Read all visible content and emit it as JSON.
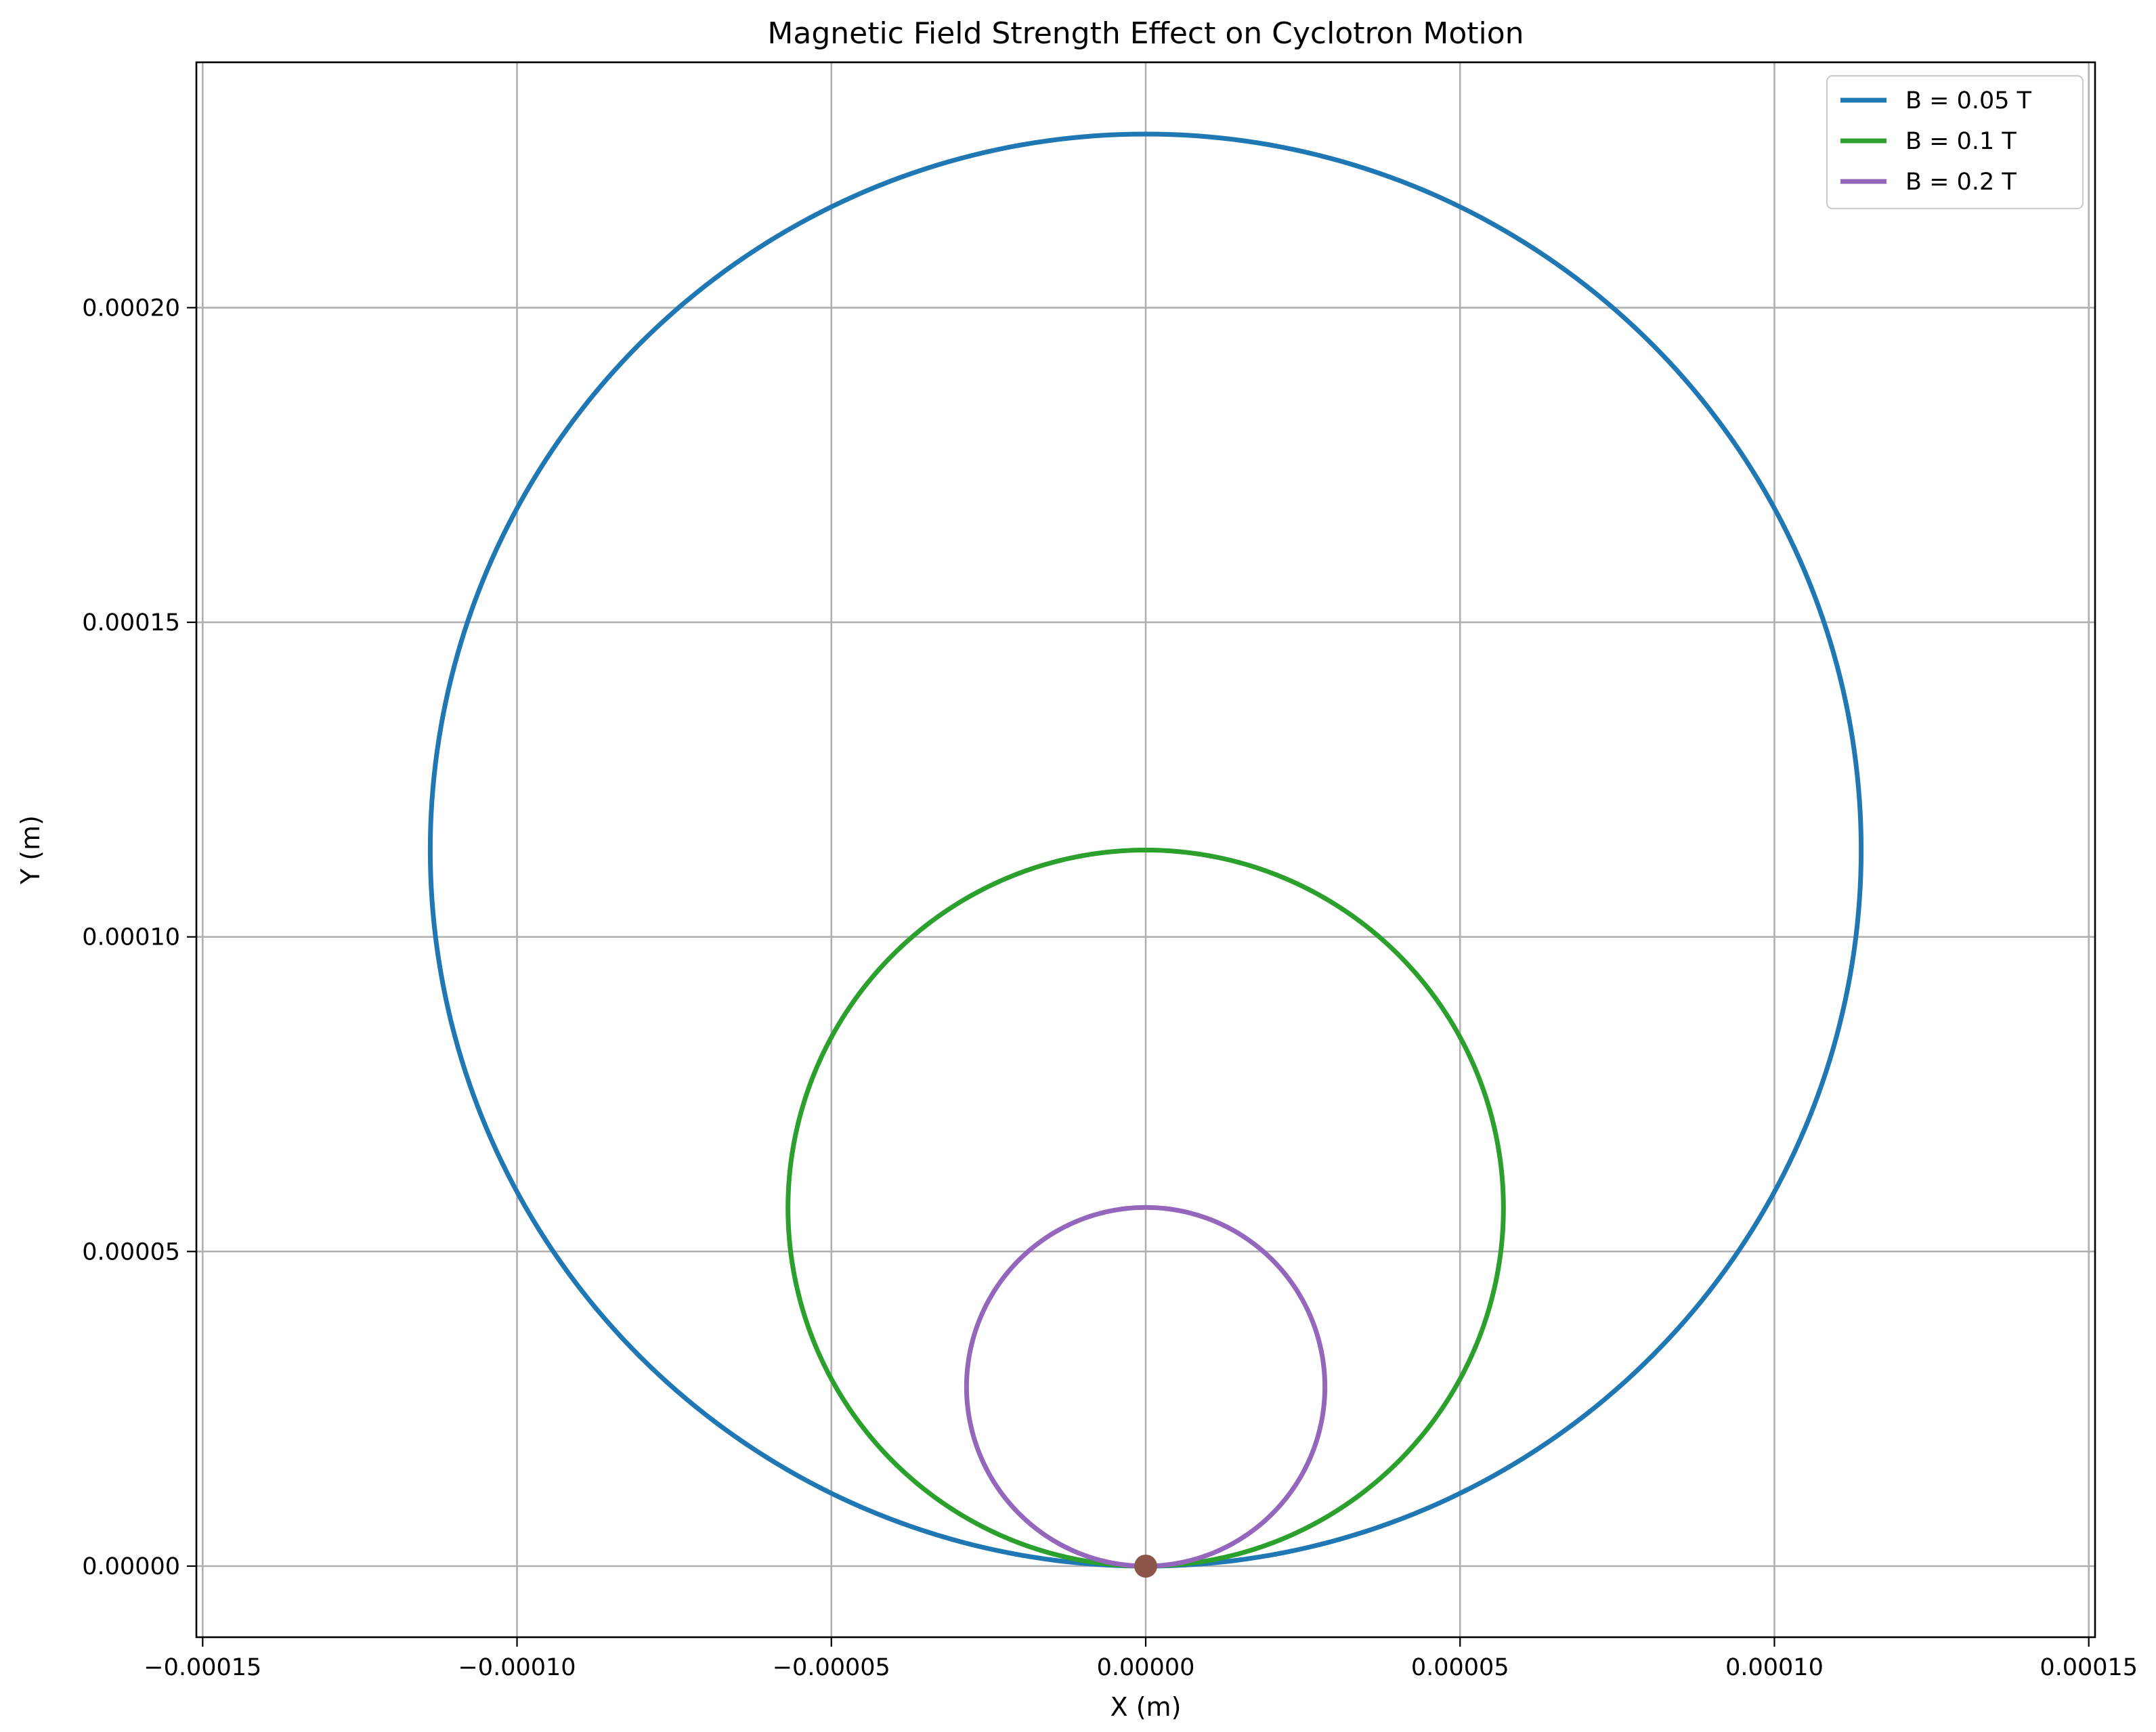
{
  "chart_data": {
    "type": "line",
    "title": "Magnetic Field Strength Effect on Cyclotron Motion",
    "xlabel": "X (m)",
    "ylabel": "Y (m)",
    "xlim": [
      -0.000151,
      0.000151
    ],
    "ylim": [
      -1.13e-05,
      0.000239
    ],
    "xticks": [
      -0.00015,
      -0.0001,
      -5e-05,
      0,
      5e-05,
      0.0001,
      0.00015
    ],
    "xtick_labels": [
      "−0.00015",
      "−0.00010",
      "−0.00005",
      "0.00000",
      "0.00005",
      "0.00010",
      "0.00015"
    ],
    "yticks": [
      0,
      5e-05,
      0.0001,
      0.00015,
      0.0002
    ],
    "ytick_labels": [
      "0.00000",
      "0.00005",
      "0.00010",
      "0.00015",
      "0.00020"
    ],
    "grid": true,
    "legend_position": "top-right",
    "series": [
      {
        "name": "B = 0.05 T",
        "color": "#1f77b4",
        "shape": "circle",
        "center": [
          0,
          0.0001138
        ],
        "radius": 0.0001138
      },
      {
        "name": "B = 0.1 T",
        "color": "#2ca02c",
        "shape": "circle",
        "center": [
          0,
          5.69e-05
        ],
        "radius": 5.69e-05
      },
      {
        "name": "B = 0.2 T",
        "color": "#9467bd",
        "shape": "circle",
        "center": [
          0,
          2.85e-05
        ],
        "radius": 2.85e-05
      }
    ],
    "points": [
      {
        "x": 0,
        "y": 0,
        "color": "#8c564b"
      }
    ]
  }
}
